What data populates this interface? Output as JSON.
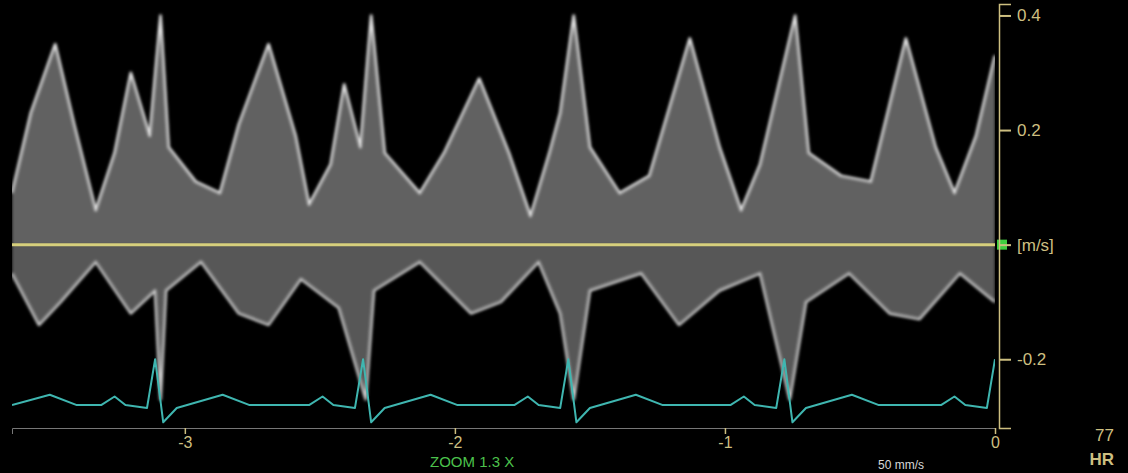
{
  "chart_data": {
    "type": "line",
    "xlim": [
      -3.64,
      0
    ],
    "ylim": [
      -0.32,
      0.42
    ],
    "xticks": [
      -3,
      -2,
      -1,
      0
    ],
    "yticks": [
      0.4,
      0.2,
      {
        "value": 0,
        "label": "[m/s]"
      },
      -0.2
    ],
    "annotations": [
      "ZOOM 1.3 X",
      "50 mm/s"
    ],
    "heart_rate": {
      "value": 77,
      "label": "HR"
    },
    "series": [
      {
        "type": "area",
        "color": "#e6e6e6",
        "x": [
          -3.64,
          -3.57,
          -3.48,
          -3.41,
          -3.33,
          -3.26,
          -3.2,
          -3.13,
          -3.09,
          -3.06,
          -2.96,
          -2.87,
          -2.8,
          -2.69,
          -2.59,
          -2.54,
          -2.46,
          -2.41,
          -2.35,
          -2.31,
          -2.26,
          -2.13,
          -2.04,
          -1.91,
          -1.8,
          -1.72,
          -1.65,
          -1.61,
          -1.56,
          -1.5,
          -1.39,
          -1.28,
          -1.13,
          -1.02,
          -0.94,
          -0.87,
          -0.81,
          -0.74,
          -0.69,
          -0.57,
          -0.46,
          -0.33,
          -0.22,
          -0.15,
          -0.07,
          0
        ],
        "values": [
          0.09,
          0.23,
          0.35,
          0.21,
          0.06,
          0.16,
          0.3,
          0.19,
          0.4,
          0.17,
          0.11,
          0.09,
          0.21,
          0.35,
          0.19,
          0.07,
          0.14,
          0.28,
          0.17,
          0.4,
          0.16,
          0.09,
          0.16,
          0.29,
          0.16,
          0.05,
          0.16,
          0.23,
          0.4,
          0.17,
          0.09,
          0.12,
          0.36,
          0.17,
          0.06,
          0.14,
          0.26,
          0.4,
          0.16,
          0.12,
          0.11,
          0.36,
          0.17,
          0.09,
          0.19,
          0.33
        ]
      },
      {
        "type": "area",
        "color": "#d0d0d0",
        "x": [
          -3.64,
          -3.54,
          -3.46,
          -3.33,
          -3.2,
          -3.11,
          -3.09,
          -3.07,
          -2.94,
          -2.8,
          -2.69,
          -2.57,
          -2.43,
          -2.33,
          -2.3,
          -2.13,
          -1.94,
          -1.83,
          -1.69,
          -1.61,
          -1.56,
          -1.5,
          -1.31,
          -1.17,
          -1.02,
          -0.87,
          -0.76,
          -0.7,
          -0.54,
          -0.39,
          -0.28,
          -0.13,
          0
        ],
        "values": [
          -0.05,
          -0.14,
          -0.1,
          -0.03,
          -0.12,
          -0.08,
          -0.27,
          -0.08,
          -0.03,
          -0.12,
          -0.14,
          -0.06,
          -0.11,
          -0.27,
          -0.08,
          -0.03,
          -0.12,
          -0.1,
          -0.03,
          -0.12,
          -0.27,
          -0.08,
          -0.05,
          -0.14,
          -0.08,
          -0.05,
          -0.27,
          -0.1,
          -0.05,
          -0.12,
          -0.13,
          -0.05,
          -0.1
        ]
      },
      {
        "type": "line",
        "color": "#3fb6b0",
        "x": [
          -3.64,
          -3.5,
          -3.4,
          -3.31,
          -3.26,
          -3.22,
          -3.14,
          -3.11,
          -3.08,
          -3.03,
          -2.86,
          -2.76,
          -2.54,
          -2.49,
          -2.45,
          -2.37,
          -2.34,
          -2.31,
          -2.26,
          -2.09,
          -1.99,
          -1.78,
          -1.73,
          -1.69,
          -1.61,
          -1.58,
          -1.55,
          -1.5,
          -1.33,
          -1.23,
          -0.98,
          -0.93,
          -0.89,
          -0.81,
          -0.78,
          -0.75,
          -0.7,
          -0.53,
          -0.43,
          -0.2,
          -0.15,
          -0.11,
          -0.03,
          0
        ],
        "values": [
          -0.28,
          -0.262,
          -0.28,
          -0.28,
          -0.265,
          -0.28,
          -0.285,
          -0.2,
          -0.31,
          -0.285,
          -0.262,
          -0.28,
          -0.28,
          -0.265,
          -0.28,
          -0.285,
          -0.2,
          -0.31,
          -0.285,
          -0.262,
          -0.28,
          -0.28,
          -0.265,
          -0.28,
          -0.285,
          -0.2,
          -0.31,
          -0.285,
          -0.262,
          -0.28,
          -0.28,
          -0.265,
          -0.28,
          -0.285,
          -0.2,
          -0.31,
          -0.285,
          -0.262,
          -0.28,
          -0.28,
          -0.265,
          -0.28,
          -0.285,
          -0.2
        ]
      }
    ]
  }
}
